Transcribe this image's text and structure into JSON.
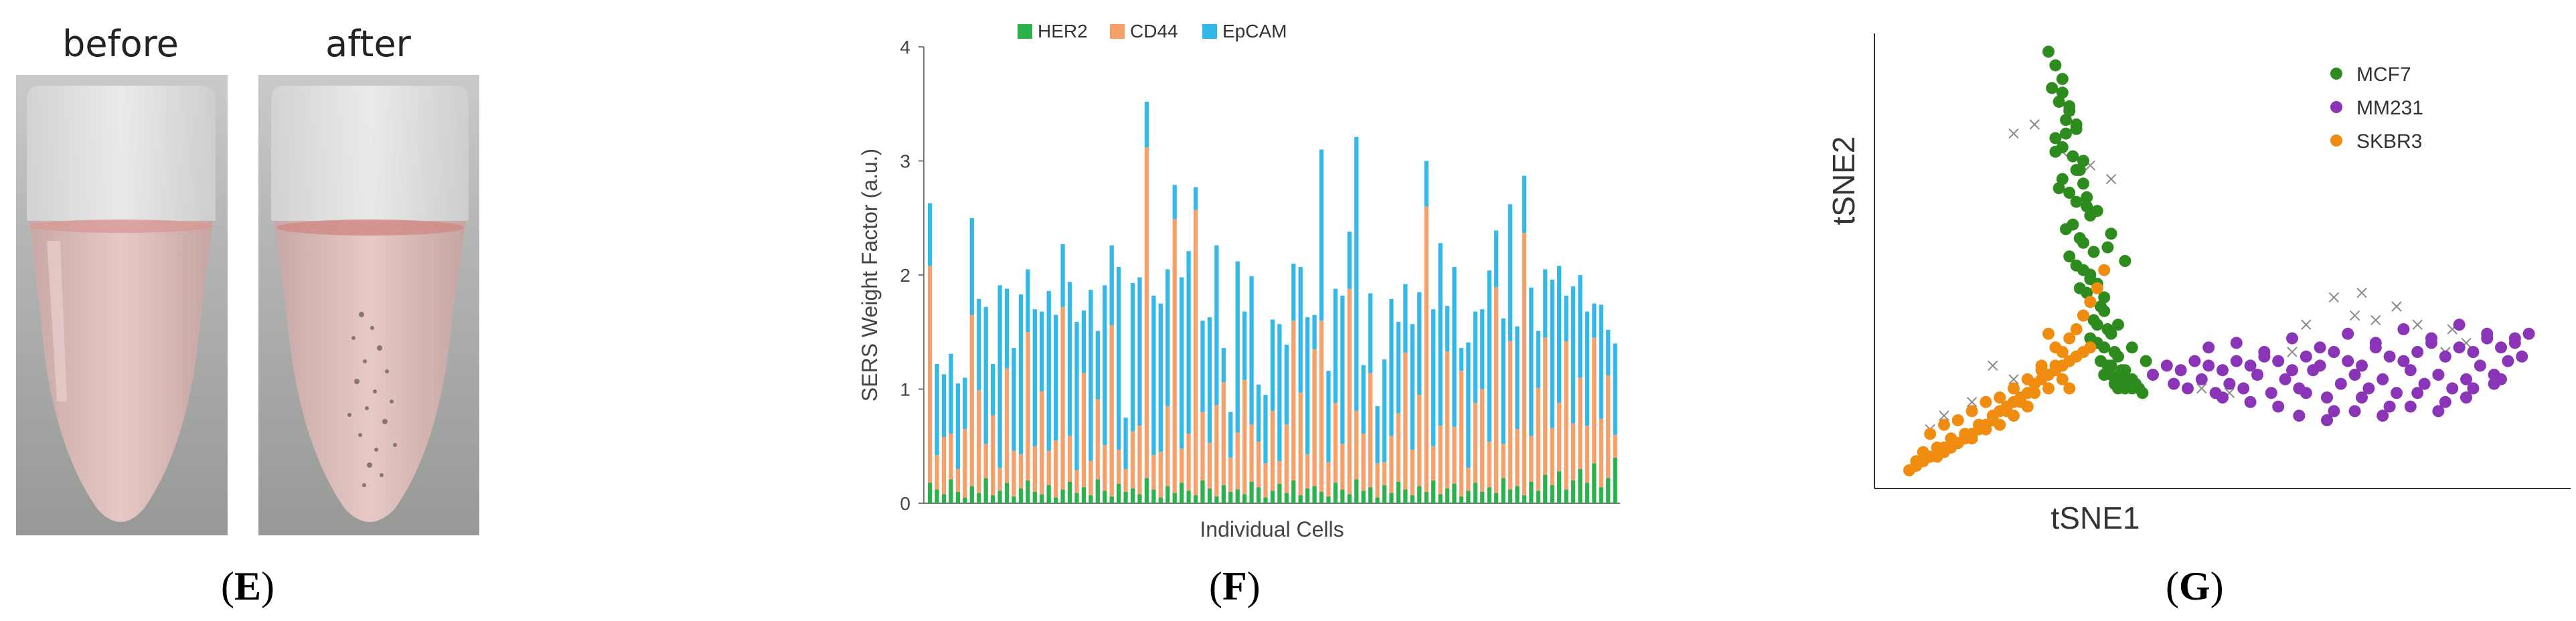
{
  "panels": {
    "E": {
      "label": "E",
      "photos": [
        {
          "title": "before"
        },
        {
          "title": "after"
        }
      ]
    },
    "F": {
      "label": "F"
    },
    "G": {
      "label": "G"
    }
  },
  "chart_data": [
    {
      "panel": "F",
      "type": "bar",
      "stacked": true,
      "title": "",
      "xlabel": "Individual Cells",
      "ylabel": "SERS Weight Factor (a.u.)",
      "ylim": [
        0,
        4
      ],
      "yticks": [
        "0",
        "1",
        "2",
        "3",
        "4"
      ],
      "legend_position": "top",
      "colors": {
        "HER2": "#2bb24c",
        "CD44": "#f7a06a",
        "EpCAM": "#33b8ea"
      },
      "series": [
        {
          "name": "HER2",
          "values": [
            0.18,
            0.12,
            0.08,
            0.21,
            0.1,
            0.05,
            0.15,
            0.09,
            0.22,
            0.07,
            0.11,
            0.18,
            0.06,
            0.13,
            0.2,
            0.1,
            0.08,
            0.16,
            0.05,
            0.12,
            0.19,
            0.09,
            0.14,
            0.07,
            0.21,
            0.11,
            0.06,
            0.17,
            0.1,
            0.13,
            0.08,
            0.22,
            0.12,
            0.05,
            0.15,
            0.09,
            0.18,
            0.11,
            0.07,
            0.2,
            0.13,
            0.06,
            0.16,
            0.1,
            0.12,
            0.08,
            0.19,
            0.14,
            0.05,
            0.11,
            0.17,
            0.09,
            0.2,
            0.07,
            0.13,
            0.15,
            0.1,
            0.06,
            0.18,
            0.12,
            0.08,
            0.21,
            0.11,
            0.14,
            0.05,
            0.16,
            0.09,
            0.19,
            0.12,
            0.07,
            0.15,
            0.1,
            0.2,
            0.08,
            0.13,
            0.17,
            0.06,
            0.11,
            0.18,
            0.1,
            0.14,
            0.09,
            0.22,
            0.12,
            0.15,
            0.07,
            0.19,
            0.11,
            0.25,
            0.16,
            0.28,
            0.12,
            0.2,
            0.3,
            0.18,
            0.35,
            0.14,
            0.22,
            0.4
          ]
        },
        {
          "name": "CD44",
          "values": [
            1.9,
            0.3,
            0.5,
            0.4,
            0.2,
            0.6,
            1.5,
            0.9,
            0.3,
            0.7,
            0.2,
            1.0,
            0.4,
            0.3,
            1.3,
            0.4,
            0.9,
            0.3,
            0.5,
            1.6,
            0.4,
            0.2,
            1.0,
            0.3,
            0.7,
            0.4,
            1.5,
            0.3,
            0.2,
            0.5,
            0.6,
            2.9,
            0.3,
            0.4,
            0.7,
            2.4,
            0.3,
            0.5,
            2.5,
            0.6,
            0.4,
            0.8,
            0.9,
            0.3,
            0.5,
            1.0,
            0.5,
            0.4,
            0.3,
            0.7,
            0.2,
            0.6,
            1.4,
            0.9,
            0.3,
            1.2,
            1.5,
            0.3,
            0.7,
            0.4,
            1.8,
            0.6,
            0.5,
            1.0,
            0.3,
            0.2,
            0.5,
            0.6,
            1.2,
            0.4,
            0.8,
            2.5,
            0.3,
            0.6,
            1.2,
            0.5,
            1.1,
            0.2,
            0.7,
            0.9,
            0.4,
            1.8,
            0.3,
            1.3,
            0.5,
            2.3,
            0.4,
            0.9,
            1.2,
            0.5,
            0.6,
            1.3,
            0.5,
            0.8,
            0.5,
            1.1,
            0.6,
            0.9,
            0.2
          ]
        },
        {
          "name": "EpCAM",
          "values": [
            0.55,
            0.8,
            0.55,
            0.7,
            0.75,
            0.45,
            0.85,
            0.8,
            1.2,
            0.45,
            1.6,
            0.7,
            0.9,
            1.4,
            0.55,
            1.2,
            0.7,
            1.4,
            1.1,
            0.55,
            1.35,
            1.3,
            0.55,
            1.5,
            0.6,
            1.4,
            0.7,
            1.6,
            0.45,
            1.3,
            1.3,
            0.4,
            1.4,
            1.3,
            1.2,
            0.3,
            1.5,
            1.6,
            0.2,
            0.8,
            1.1,
            1.4,
            0.3,
            0.4,
            1.5,
            0.6,
            1.3,
            0.5,
            0.6,
            0.8,
            1.2,
            0.7,
            0.5,
            1.1,
            1.2,
            0.3,
            1.5,
            0.8,
            1.0,
            1.3,
            0.5,
            2.4,
            0.6,
            0.7,
            0.5,
            0.9,
            1.2,
            0.8,
            0.6,
            1.1,
            0.9,
            0.4,
            1.2,
            1.6,
            0.4,
            1.4,
            0.2,
            1.1,
            0.8,
            0.7,
            1.5,
            0.5,
            1.1,
            1.2,
            0.9,
            0.5,
            1.3,
            0.5,
            0.6,
            1.3,
            1.2,
            0.4,
            1.2,
            0.9,
            1.0,
            0.3,
            1.0,
            0.4,
            0.8
          ]
        }
      ]
    },
    {
      "panel": "G",
      "type": "scatter",
      "title": "",
      "xlabel": "tSNE1",
      "ylabel": "tSNE2",
      "xlim": [
        0,
        100
      ],
      "ylim": [
        0,
        100
      ],
      "legend_position": "top-right",
      "series": [
        {
          "name": "MCF7",
          "color": "#2e8b1e",
          "marker": "circle",
          "x": [
            25,
            26,
            27,
            25.5,
            26.5,
            28,
            27.5,
            29,
            26,
            27,
            28.5,
            30,
            29.5,
            27,
            26.5,
            28,
            29,
            30.5,
            31,
            28.5,
            27.5,
            29.5,
            30,
            31.5,
            28,
            29,
            30,
            31,
            32,
            29.5,
            30.5,
            31,
            32.5,
            33,
            30,
            31.5,
            32,
            33.5,
            34,
            31,
            32,
            33,
            34.5,
            35,
            32.5,
            33.5,
            34,
            35.5,
            36,
            33,
            34,
            35,
            36,
            37,
            34.5,
            35.5,
            36.5,
            37.5,
            38,
            35,
            36,
            37,
            38.5,
            27,
            28,
            29,
            26,
            30,
            32,
            34,
            36,
            31,
            33,
            35,
            37,
            39,
            29,
            30.5,
            27.5,
            33.5
          ],
          "y": [
            96,
            93,
            90,
            88,
            85,
            83,
            81,
            79,
            77,
            75,
            73,
            72,
            70,
            68,
            66,
            65,
            63,
            62,
            60,
            58,
            57,
            55,
            54,
            52,
            51,
            49,
            48,
            46,
            45,
            44,
            43,
            41,
            40,
            39,
            38,
            37,
            36,
            35,
            34,
            33,
            32,
            31,
            30,
            29,
            28,
            27,
            27,
            26,
            26,
            25,
            25,
            24,
            24,
            24,
            23,
            23,
            23,
            23,
            22,
            22,
            22,
            22,
            21,
            87,
            84,
            80,
            74,
            67,
            61,
            56,
            50,
            47,
            42,
            36,
            31,
            28,
            70,
            64,
            78,
            53
          ]
        },
        {
          "name": "MM231",
          "color": "#8a35b8",
          "marker": "circle",
          "x": [
            40,
            42,
            44,
            46,
            48,
            50,
            52,
            54,
            56,
            58,
            60,
            62,
            64,
            66,
            68,
            70,
            72,
            74,
            76,
            78,
            80,
            82,
            84,
            86,
            88,
            90,
            92,
            94,
            43,
            45,
            47,
            49,
            51,
            53,
            55,
            57,
            59,
            61,
            63,
            65,
            67,
            69,
            71,
            73,
            75,
            77,
            79,
            81,
            83,
            85,
            87,
            89,
            91,
            93,
            48,
            52,
            56,
            60,
            64,
            68,
            72,
            76,
            80,
            84,
            88,
            92,
            50,
            54,
            58,
            62,
            66,
            70,
            74,
            78,
            82,
            86,
            90,
            61,
            65,
            69,
            73,
            77,
            81,
            85,
            89
          ],
          "y": [
            25,
            27,
            26,
            28,
            27,
            26,
            28,
            27,
            29,
            28,
            26,
            29,
            27,
            30,
            28,
            27,
            31,
            29,
            28,
            30,
            32,
            29,
            31,
            30,
            33,
            31,
            32,
            34,
            23,
            22,
            24,
            21,
            23,
            22,
            25,
            21,
            24,
            22,
            26,
            20,
            23,
            25,
            22,
            24,
            21,
            26,
            23,
            25,
            22,
            24,
            27,
            25,
            28,
            29,
            31,
            32,
            30,
            33,
            31,
            34,
            32,
            35,
            33,
            36,
            34,
            33,
            20,
            19,
            18,
            21,
            17,
            20,
            18,
            21,
            19,
            22,
            24,
            16,
            15,
            17,
            16,
            18,
            17,
            20,
            23
          ]
        },
        {
          "name": "SKBR3",
          "color": "#f08c10",
          "marker": "circle",
          "x": [
            5,
            6,
            7,
            8,
            9,
            10,
            11,
            12,
            13,
            14,
            15,
            16,
            17,
            18,
            19,
            20,
            21,
            22,
            23,
            24,
            25,
            26,
            27,
            28,
            29,
            30,
            31,
            7,
            9,
            11,
            13,
            15,
            17,
            19,
            21,
            23,
            25,
            27,
            8,
            10,
            12,
            14,
            16,
            18,
            20,
            22,
            24,
            26,
            6,
            8,
            10,
            12,
            14,
            16,
            18,
            20,
            22,
            28,
            29,
            30,
            31,
            32,
            33,
            27,
            28,
            26,
            25,
            24
          ],
          "y": [
            4,
            5,
            6,
            7,
            7,
            8,
            9,
            10,
            11,
            12,
            13,
            14,
            16,
            17,
            18,
            19,
            20,
            21,
            23,
            24,
            25,
            26,
            27,
            28,
            29,
            30,
            31,
            8,
            9,
            11,
            12,
            14,
            15,
            17,
            19,
            21,
            22,
            24,
            12,
            14,
            15,
            17,
            19,
            20,
            22,
            24,
            26,
            27,
            6,
            7,
            9,
            10,
            11,
            13,
            14,
            16,
            18,
            33,
            35,
            38,
            41,
            44,
            48,
            30,
            22,
            31,
            34,
            27
          ]
        }
      ]
    }
  ]
}
